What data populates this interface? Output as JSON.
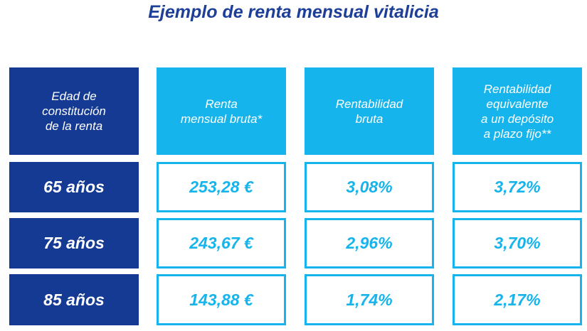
{
  "title": "Ejemplo de renta mensual vitalicia",
  "headers": [
    "Edad de\nconstitución\nde la renta",
    "Renta\nmensual bruta*",
    "Rentabilidad\nbruta",
    "Rentabilidad\nequivalente\na un depósito\na plazo fijo**"
  ],
  "rows": [
    {
      "age": "65 años",
      "renta": "253,28 €",
      "bruta": "3,08%",
      "equivalente": "3,72%"
    },
    {
      "age": "75 años",
      "renta": "243,67 €",
      "bruta": "2,96%",
      "equivalente": "3,70%"
    },
    {
      "age": "85 años",
      "renta": "143,88 €",
      "bruta": "1,74%",
      "equivalente": "2,17%"
    }
  ],
  "colors": {
    "dark_blue": "#143a94",
    "light_blue": "#16b4ec",
    "title_blue": "#1d3f98"
  }
}
